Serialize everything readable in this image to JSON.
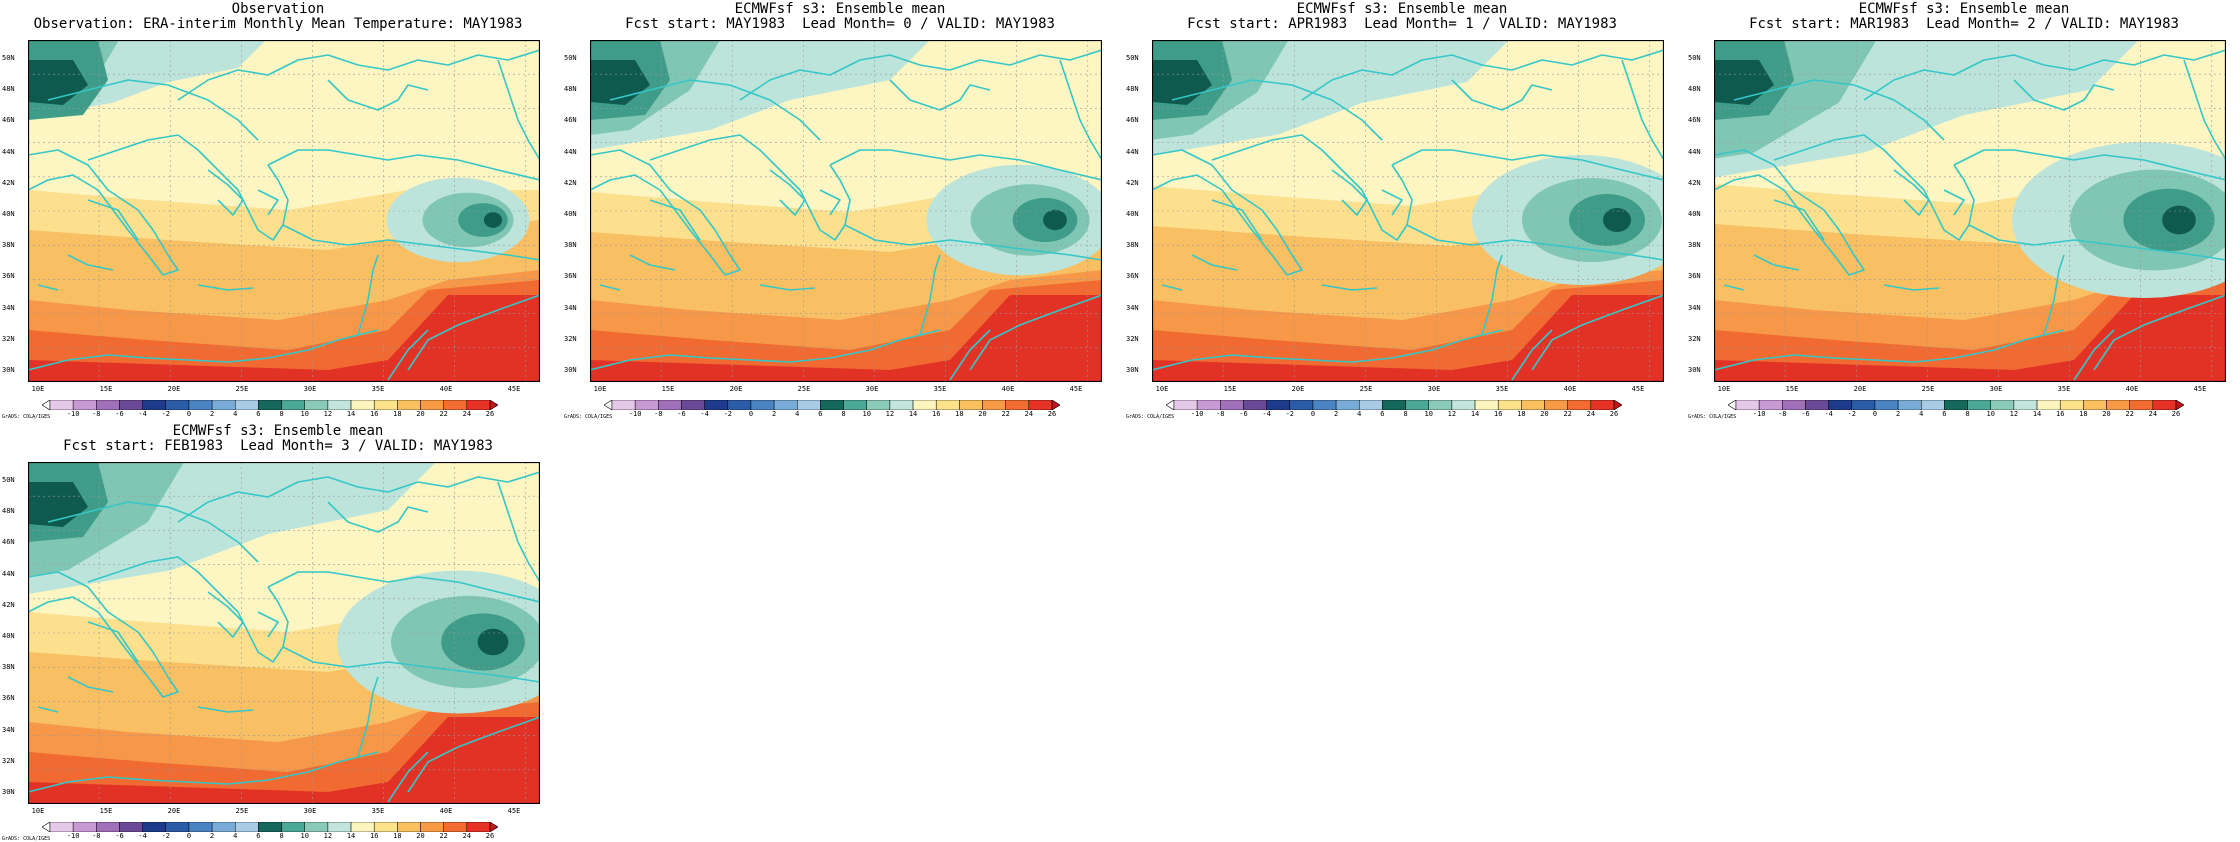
{
  "panels": [
    {
      "title1": "Observation",
      "title2": "Observation: ERA-interim Monthly Mean Temperature: MAY1983",
      "variant": 0
    },
    {
      "title1": "ECMWFsf s3: Ensemble mean",
      "title2": "Fcst start: MAY1983  Lead Month= 0 / VALID: MAY1983",
      "variant": 1
    },
    {
      "title1": "ECMWFsf s3: Ensemble mean",
      "title2": "Fcst start: APR1983  Lead Month= 1 / VALID: MAY1983",
      "variant": 2
    },
    {
      "title1": "ECMWFsf s3: Ensemble mean",
      "title2": "Fcst start: MAR1983  Lead Month= 2 / VALID: MAY1983",
      "variant": 3
    },
    {
      "title1": "ECMWFsf s3: Ensemble mean",
      "title2": "Fcst start: FEB1983  Lead Month= 3 / VALID: MAY1983",
      "variant": 4
    }
  ],
  "lat_labels": [
    "50N",
    "48N",
    "46N",
    "44N",
    "42N",
    "40N",
    "38N",
    "36N",
    "34N",
    "32N",
    "30N"
  ],
  "lon_labels": [
    "10E",
    "15E",
    "20E",
    "25E",
    "30E",
    "35E",
    "40E",
    "45E"
  ],
  "colorbar": {
    "ticks": [
      "-10",
      "-8",
      "-6",
      "-4",
      "-2",
      "0",
      "2",
      "4",
      "6",
      "8",
      "10",
      "12",
      "14",
      "16",
      "18",
      "20",
      "22",
      "24",
      "26"
    ],
    "colors": [
      "#ffffff",
      "#e6c8ea",
      "#c89ad4",
      "#a070b8",
      "#6a4a98",
      "#1e3a8c",
      "#2a5ca8",
      "#4a84c2",
      "#78acd6",
      "#a8cce6",
      "#14685c",
      "#4ca896",
      "#8ccab8",
      "#c2e6dc",
      "#fdf5be",
      "#fde28a",
      "#fac060",
      "#f79a46",
      "#f26b30",
      "#e63226",
      "#c4141c"
    ],
    "field_colors": [
      "#0e5a4e",
      "#3e9c88",
      "#80c6b4",
      "#bde4db",
      "#fdf5c2",
      "#fde08e",
      "#f9bf63",
      "#f69848",
      "#f06a31",
      "#e23226"
    ]
  },
  "credit": "GrADS: COLA/IGES"
}
